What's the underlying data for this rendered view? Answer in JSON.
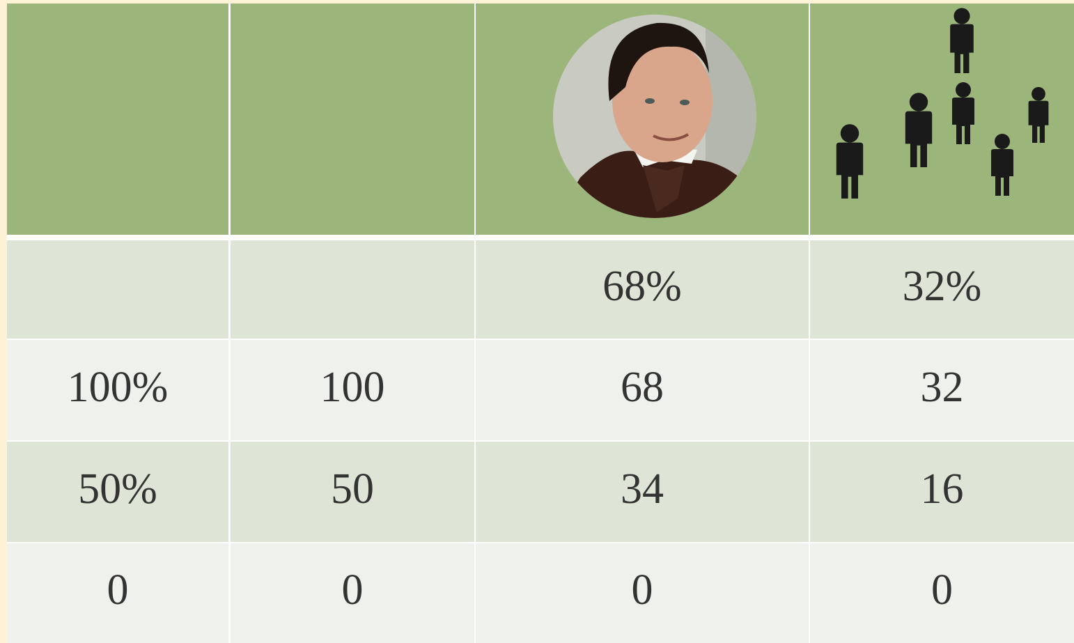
{
  "table": {
    "rows": [
      [
        null,
        null,
        "68%",
        "32%"
      ],
      [
        "100%",
        "100",
        "68",
        "32"
      ],
      [
        "50%",
        "50",
        "34",
        "16"
      ],
      [
        "0",
        "0",
        "0",
        "0"
      ]
    ]
  }
}
